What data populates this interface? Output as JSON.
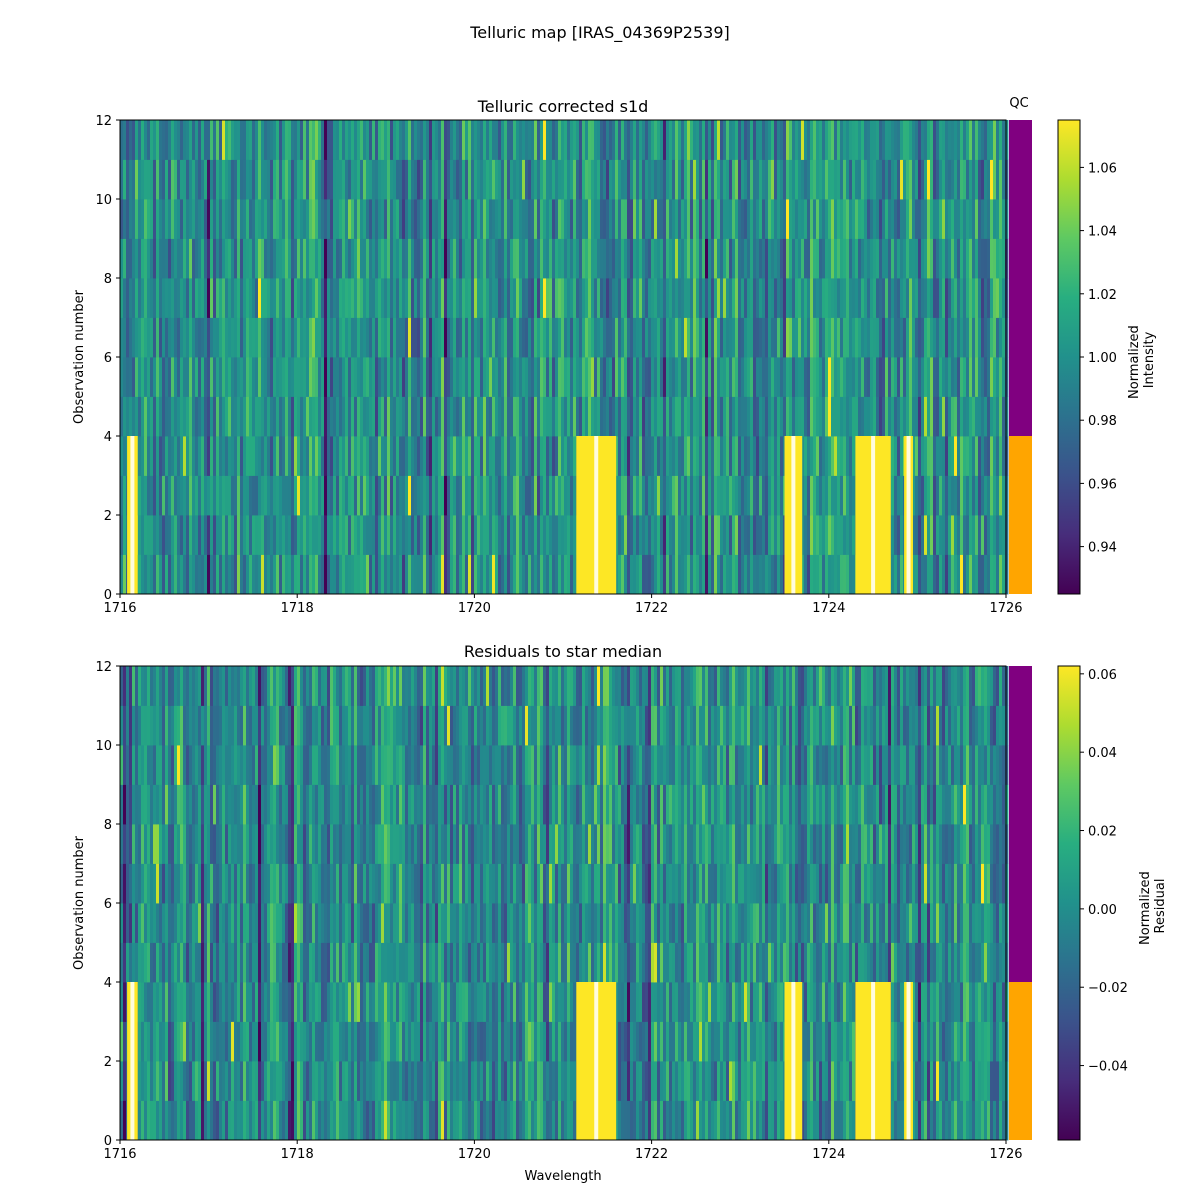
{
  "figure": {
    "suptitle": "Telluric map [IRAS_04369P2539]"
  },
  "chart_data": [
    {
      "type": "heatmap",
      "title": "Telluric corrected s1d",
      "xlabel": "",
      "ylabel": "Observation number",
      "xlim": [
        1716,
        1726
      ],
      "ylim": [
        0,
        12
      ],
      "xticks": [
        "1716",
        "1718",
        "1720",
        "1722",
        "1724",
        "1726"
      ],
      "yticks": [
        "0",
        "2",
        "4",
        "6",
        "8",
        "10",
        "12"
      ],
      "n_observations": 12,
      "colormap": "viridis",
      "colorbar": {
        "label_lines": [
          "Normalized",
          "Intensity"
        ],
        "vmin": 0.925,
        "vmax": 1.075,
        "ticks": [
          "0.94",
          "0.96",
          "0.98",
          "1.00",
          "1.02",
          "1.04",
          "1.06"
        ],
        "tick_values": [
          0.94,
          0.96,
          0.98,
          1.0,
          1.02,
          1.04,
          1.06
        ]
      },
      "qc": {
        "label": "QC",
        "segments": [
          {
            "from_obs": 0,
            "to_obs": 4,
            "color": "#ffa500"
          },
          {
            "from_obs": 4,
            "to_obs": 12,
            "color": "#800080"
          }
        ]
      },
      "saturated_bands": [
        {
          "x0": 1716.08,
          "x1": 1716.2,
          "obs_from": 0,
          "obs_to": 4
        },
        {
          "x0": 1721.15,
          "x1": 1721.6,
          "obs_from": 0,
          "obs_to": 4
        },
        {
          "x0": 1723.5,
          "x1": 1723.7,
          "obs_from": 0,
          "obs_to": 4
        },
        {
          "x0": 1724.3,
          "x1": 1724.7,
          "obs_from": 0,
          "obs_to": 4
        },
        {
          "x0": 1724.85,
          "x1": 1724.95,
          "obs_from": 0,
          "obs_to": 4
        }
      ]
    },
    {
      "type": "heatmap",
      "title": "Residuals to star median",
      "xlabel": "Wavelength",
      "ylabel": "Observation number",
      "xlim": [
        1716,
        1726
      ],
      "ylim": [
        0,
        12
      ],
      "xticks": [
        "1716",
        "1718",
        "1720",
        "1722",
        "1724",
        "1726"
      ],
      "yticks": [
        "0",
        "2",
        "4",
        "6",
        "8",
        "10",
        "12"
      ],
      "n_observations": 12,
      "colormap": "viridis",
      "colorbar": {
        "label_lines": [
          "Normalized",
          "Residual"
        ],
        "vmin": -0.059,
        "vmax": 0.062,
        "ticks": [
          "−0.04",
          "−0.02",
          "0.00",
          "0.02",
          "0.04",
          "0.06"
        ],
        "tick_values": [
          -0.04,
          -0.02,
          0.0,
          0.02,
          0.04,
          0.06
        ]
      },
      "qc": {
        "label": "",
        "segments": [
          {
            "from_obs": 0,
            "to_obs": 4,
            "color": "#ffa500"
          },
          {
            "from_obs": 4,
            "to_obs": 12,
            "color": "#800080"
          }
        ]
      },
      "saturated_bands": [
        {
          "x0": 1716.08,
          "x1": 1716.2,
          "obs_from": 0,
          "obs_to": 4
        },
        {
          "x0": 1721.15,
          "x1": 1721.6,
          "obs_from": 0,
          "obs_to": 4
        },
        {
          "x0": 1723.5,
          "x1": 1723.7,
          "obs_from": 0,
          "obs_to": 4
        },
        {
          "x0": 1724.3,
          "x1": 1724.7,
          "obs_from": 0,
          "obs_to": 4
        },
        {
          "x0": 1724.85,
          "x1": 1724.95,
          "obs_from": 0,
          "obs_to": 4
        }
      ]
    }
  ]
}
